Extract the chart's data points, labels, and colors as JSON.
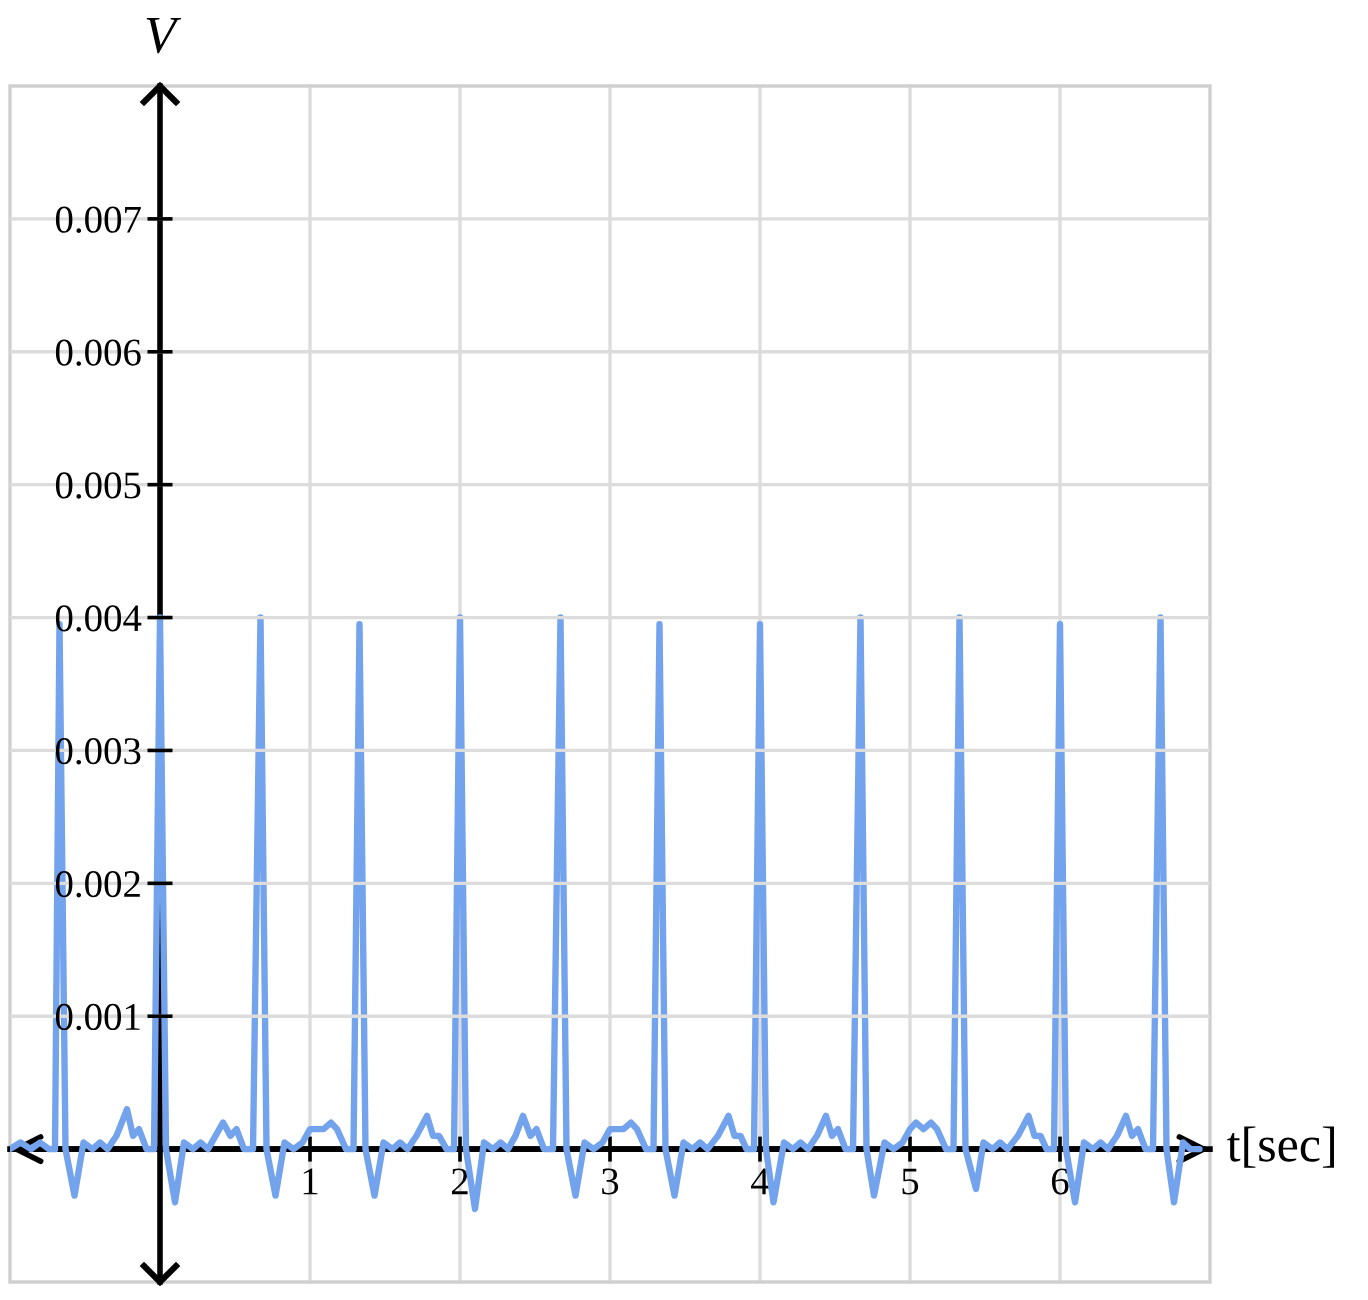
{
  "chart_data": {
    "type": "line",
    "xlabel": "t[sec]",
    "ylabel": "V",
    "xlim": [
      -1,
      7
    ],
    "ylim": [
      -0.001,
      0.008
    ],
    "xticks": [
      1,
      2,
      3,
      4,
      5,
      6
    ],
    "yticks": [
      0.001,
      0.002,
      0.003,
      0.004,
      0.005,
      0.006,
      0.007
    ],
    "grid": true,
    "series": [
      {
        "color": "#73a3ec",
        "x": [
          -1.0,
          -0.93,
          -0.86,
          -0.8,
          -0.74,
          -0.7,
          -0.67,
          -0.63,
          -0.57,
          -0.51,
          -0.45,
          -0.4,
          -0.35,
          -0.29,
          -0.22,
          -0.18,
          -0.14,
          -0.09,
          -0.04,
          0.0,
          0.04,
          0.1,
          0.16,
          0.22,
          0.27,
          0.32,
          0.37,
          0.42,
          0.47,
          0.51,
          0.56,
          0.62,
          0.67,
          0.71,
          0.77,
          0.83,
          0.89,
          0.95,
          1.0,
          1.04,
          1.09,
          1.14,
          1.18,
          1.24,
          1.29,
          1.33,
          1.37,
          1.43,
          1.49,
          1.55,
          1.6,
          1.65,
          1.71,
          1.78,
          1.82,
          1.86,
          1.91,
          1.96,
          2.0,
          2.04,
          2.1,
          2.16,
          2.22,
          2.27,
          2.32,
          2.37,
          2.42,
          2.47,
          2.51,
          2.56,
          2.62,
          2.67,
          2.71,
          2.77,
          2.83,
          2.89,
          2.95,
          3.0,
          3.04,
          3.09,
          3.14,
          3.18,
          3.24,
          3.29,
          3.33,
          3.37,
          3.43,
          3.49,
          3.55,
          3.6,
          3.65,
          3.72,
          3.79,
          3.83,
          3.87,
          3.91,
          3.96,
          4.0,
          4.04,
          4.09,
          4.16,
          4.22,
          4.27,
          4.32,
          4.38,
          4.44,
          4.48,
          4.52,
          4.57,
          4.62,
          4.67,
          4.71,
          4.76,
          4.83,
          4.89,
          4.95,
          5.0,
          5.04,
          5.09,
          5.14,
          5.18,
          5.24,
          5.29,
          5.33,
          5.37,
          5.44,
          5.49,
          5.55,
          5.6,
          5.65,
          5.72,
          5.79,
          5.83,
          5.87,
          5.91,
          5.96,
          6.0,
          6.04,
          6.1,
          6.16,
          6.22,
          6.27,
          6.32,
          6.38,
          6.44,
          6.48,
          6.52,
          6.57,
          6.62,
          6.67,
          6.71,
          6.76,
          6.82,
          6.87,
          6.93
        ],
        "values": [
          0.0,
          5e-05,
          0.0,
          5e-05,
          0.0,
          0.0,
          0.00395,
          0.0,
          -0.00035,
          5e-05,
          0.0,
          5e-05,
          0.0,
          0.0001,
          0.0003,
          0.0001,
          0.00015,
          0.0,
          0.0,
          0.004,
          0.0,
          -0.0004,
          5e-05,
          0.0,
          5e-05,
          0.0,
          0.0001,
          0.0002,
          0.0001,
          0.00015,
          0.0,
          0.0,
          0.004,
          0.0,
          -0.00035,
          5e-05,
          0.0,
          5e-05,
          0.00015,
          0.00015,
          0.00015,
          0.0002,
          0.00015,
          0.0,
          0.0,
          0.00395,
          0.0,
          -0.00035,
          5e-05,
          0.0,
          5e-05,
          0.0,
          0.0001,
          0.00025,
          0.0001,
          0.0001,
          0.0,
          0.0,
          0.004,
          0.0,
          -0.00045,
          5e-05,
          0.0,
          5e-05,
          0.0,
          0.0001,
          0.00025,
          0.0001,
          0.00015,
          0.0,
          0.0,
          0.004,
          0.0,
          -0.00035,
          5e-05,
          0.0,
          5e-05,
          0.00015,
          0.00015,
          0.00015,
          0.0002,
          0.00015,
          0.0,
          0.0,
          0.00395,
          0.0,
          -0.00035,
          5e-05,
          0.0,
          5e-05,
          0.0,
          0.0001,
          0.00025,
          0.0001,
          0.0001,
          0.0,
          0.0,
          0.00395,
          0.0,
          -0.0004,
          5e-05,
          0.0,
          5e-05,
          0.0,
          0.0001,
          0.00025,
          0.0001,
          0.00015,
          0.0,
          0.0,
          0.004,
          0.0,
          -0.00035,
          5e-05,
          0.0,
          5e-05,
          0.00015,
          0.0002,
          0.00015,
          0.0002,
          0.00015,
          0.0,
          0.0,
          0.004,
          0.0,
          -0.0003,
          5e-05,
          0.0,
          5e-05,
          0.0,
          0.0001,
          0.00025,
          0.0001,
          0.0001,
          0.0,
          0.0,
          0.00395,
          0.0,
          -0.0004,
          5e-05,
          0.0,
          5e-05,
          0.0,
          0.0001,
          0.00025,
          0.0001,
          0.00015,
          0.0,
          0.0,
          0.004,
          0.0,
          -0.0004,
          5e-05,
          0.0,
          0.0
        ]
      }
    ]
  }
}
